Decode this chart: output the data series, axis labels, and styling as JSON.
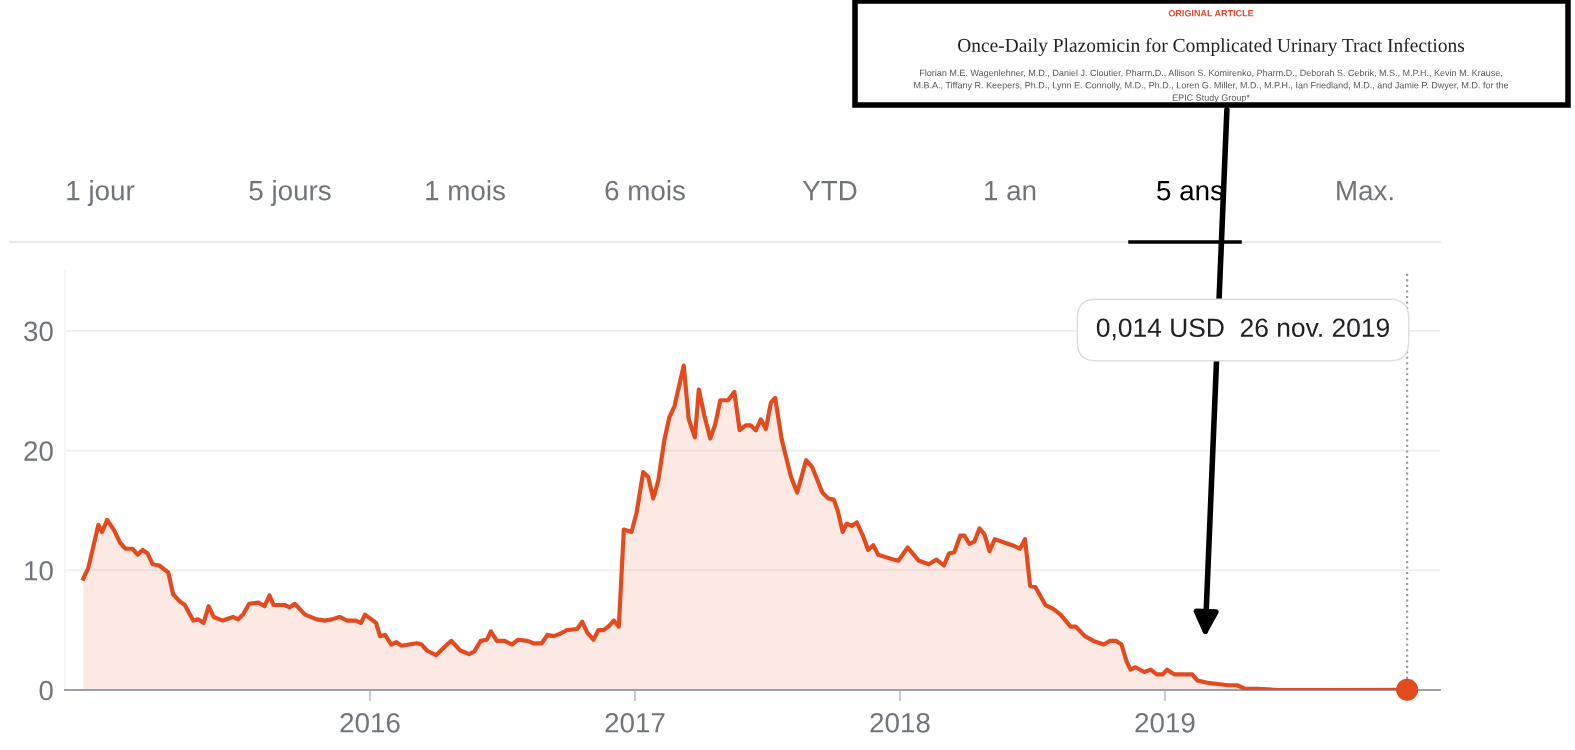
{
  "chart_data": {
    "type": "area",
    "x": [
      2014.918,
      2014.937,
      2014.975,
      2014.989,
      2015.008,
      2015.033,
      2015.057,
      2015.077,
      2015.103,
      2015.123,
      2015.142,
      2015.161,
      2015.18,
      2015.205,
      2015.239,
      2015.257,
      2015.282,
      2015.301,
      2015.333,
      2015.352,
      2015.372,
      2015.391,
      2015.41,
      2015.444,
      2015.483,
      2015.502,
      2015.521,
      2015.544,
      2015.579,
      2015.602,
      2015.621,
      2015.636,
      2015.678,
      2015.697,
      2015.716,
      2015.755,
      2015.799,
      2015.831,
      2015.856,
      2015.885,
      2015.914,
      2015.946,
      2015.966,
      2015.981,
      2016.023,
      2016.038,
      2016.057,
      2016.08,
      2016.1,
      2016.119,
      2016.176,
      2016.195,
      2016.215,
      2016.249,
      2016.291,
      2016.307,
      2016.341,
      2016.374,
      2016.393,
      2016.418,
      2016.441,
      2016.456,
      2016.479,
      2016.508,
      2016.536,
      2016.559,
      2016.594,
      2016.617,
      2016.648,
      2016.67,
      2016.693,
      2016.718,
      2016.743,
      2016.782,
      2016.801,
      2016.82,
      2016.843,
      2016.862,
      2016.881,
      2016.9,
      2016.92,
      2016.939,
      2016.958,
      2016.987,
      2017.006,
      2017.031,
      2017.05,
      2017.069,
      2017.088,
      2017.111,
      2017.13,
      2017.149,
      2017.184,
      2017.203,
      2017.226,
      2017.241,
      2017.261,
      2017.284,
      2017.303,
      2017.322,
      2017.351,
      2017.375,
      2017.395,
      2017.418,
      2017.437,
      2017.456,
      2017.475,
      2017.494,
      2017.513,
      2017.529,
      2017.554,
      2017.589,
      2017.612,
      2017.646,
      2017.669,
      2017.707,
      2017.73,
      2017.75,
      2017.765,
      2017.784,
      2017.799,
      2017.818,
      2017.837,
      2017.86,
      2017.88,
      2017.899,
      2017.918,
      2017.946,
      2017.975,
      2017.994,
      2018.029,
      2018.071,
      2018.109,
      2018.138,
      2018.166,
      2018.185,
      2018.205,
      2018.228,
      2018.243,
      2018.262,
      2018.281,
      2018.3,
      2018.319,
      2018.338,
      2018.358,
      2018.396,
      2018.424,
      2018.453,
      2018.472,
      2018.491,
      2018.511,
      2018.549,
      2018.577,
      2018.606,
      2018.644,
      2018.663,
      2018.698,
      2018.73,
      2018.769,
      2018.793,
      2018.816,
      2018.836,
      2018.855,
      2018.87,
      2018.889,
      2018.922,
      2018.946,
      2018.969,
      2018.992,
      2019.008,
      2019.036,
      2019.069,
      2019.103,
      2019.122,
      2019.161,
      2019.199,
      2019.237,
      2019.272,
      2019.304,
      2019.352,
      2019.428,
      2019.62,
      2019.914
    ],
    "series": [
      {
        "color": "#e34a1d",
        "values": [
          9.3,
          10.2,
          13.8,
          13.2,
          14.2,
          13.4,
          12.3,
          11.8,
          11.8,
          11.3,
          11.7,
          11.4,
          10.5,
          10.4,
          9.8,
          8.0,
          7.4,
          7.1,
          5.8,
          5.9,
          5.6,
          7.0,
          6.1,
          5.8,
          6.1,
          5.9,
          6.3,
          7.2,
          7.3,
          7.0,
          7.9,
          7.1,
          7.1,
          6.9,
          7.2,
          6.3,
          5.9,
          5.8,
          5.9,
          6.1,
          5.8,
          5.8,
          5.6,
          6.3,
          5.6,
          4.5,
          4.6,
          3.8,
          4.0,
          3.7,
          3.9,
          3.8,
          3.3,
          2.9,
          3.8,
          4.1,
          3.3,
          3.0,
          3.2,
          4.1,
          4.2,
          4.9,
          4.1,
          4.1,
          3.8,
          4.2,
          4.1,
          3.9,
          3.9,
          4.6,
          4.5,
          4.7,
          5.0,
          5.1,
          5.7,
          4.8,
          4.2,
          5.0,
          5.0,
          5.3,
          5.8,
          5.3,
          13.4,
          13.2,
          14.8,
          18.2,
          17.8,
          16.0,
          17.5,
          20.9,
          22.8,
          23.7,
          27.1,
          22.6,
          21.1,
          25.1,
          23.0,
          21.0,
          22.2,
          24.2,
          24.2,
          24.9,
          21.7,
          22.1,
          22.1,
          21.7,
          22.6,
          21.8,
          24.0,
          24.4,
          20.9,
          17.8,
          16.5,
          19.2,
          18.6,
          16.5,
          16.0,
          15.9,
          15.0,
          13.2,
          13.9,
          13.7,
          14.0,
          12.9,
          11.7,
          12.1,
          11.3,
          11.1,
          10.9,
          10.8,
          11.9,
          10.8,
          10.5,
          10.9,
          10.4,
          11.4,
          11.5,
          12.9,
          12.9,
          12.2,
          12.4,
          13.5,
          13.0,
          11.6,
          12.6,
          12.3,
          12.1,
          11.8,
          12.6,
          8.7,
          8.6,
          7.1,
          6.8,
          6.3,
          5.3,
          5.3,
          4.5,
          4.1,
          3.8,
          4.1,
          4.1,
          3.8,
          2.4,
          1.7,
          1.9,
          1.5,
          1.7,
          1.3,
          1.3,
          1.7,
          1.3,
          1.3,
          1.3,
          0.8,
          0.6,
          0.5,
          0.4,
          0.4,
          0.1,
          0.1,
          0,
          0,
          0.014
        ]
      },
      {
        "type": "scatter",
        "color": "#e34a1d",
        "marker": "circle",
        "x": [
          2019.914
        ],
        "values": [
          0.014
        ]
      }
    ],
    "xlim": [
      2014.849,
      2020.038
    ],
    "xticks": [
      2016,
      2017,
      2018,
      2019
    ],
    "ylim": [
      0,
      35
    ],
    "yticks": [
      0,
      10,
      20,
      30
    ],
    "grid": "y",
    "legend": false,
    "line_style": "solid",
    "ref_lines": [
      {
        "axis": "x",
        "value": 2019.914,
        "color": "#999999",
        "line_style": "dotted"
      }
    ],
    "annotations": [
      "1 jour",
      "5 jours",
      "1 mois",
      "6 mois",
      "YTD",
      "1 an",
      "5 ans",
      "Max.",
      "0,014 USD  26 nov. 2019",
      "ORIGINAL ARTICLE",
      "Once-Daily Plazomicin for Complicated Urinary Tract Infections",
      "Florian M.E. Wagenlehner, M.D., Daniel J. Cloutier, Pharm.D., Allison S. Komirenko, Pharm.D., Deborah S. Cebrik, M.S., M.P.H., Kevin M. Krause,\nM.B.A., Tiffany R. Keepers, Ph.D., Lynn E. Connolly, M.D., Ph.D., Loren G. Miller, M.D., M.P.H., Ian Friedland, M.D., and Jamie P. Dwyer, M.D. for the\nEPIC Study Group*"
    ]
  }
}
